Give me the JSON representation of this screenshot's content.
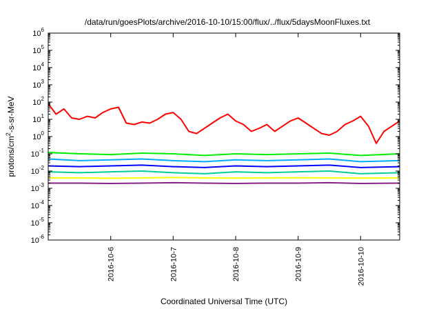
{
  "chart_data": {
    "type": "line",
    "title": "/data/run/goesPlots/archive/2016-10-10/15:00/flux/../flux/5daysMoonFluxes.txt",
    "xlabel": "Coordinated Universal Time (UTC)",
    "ylabel_parts": [
      "protons/cm",
      "2",
      "-s-sr-MeV"
    ],
    "yscale": "log",
    "ylim": [
      1e-06,
      1000000.0
    ],
    "xlim": [
      "2016-10-05T00:00",
      "2016-10-10T15:00"
    ],
    "x_ticks": [
      "2016-10-6",
      "2016-10-7",
      "2016-10-8",
      "2016-10-9",
      "2016-10-10"
    ],
    "y_ticks": [
      {
        "base": "10",
        "exp": "-6"
      },
      {
        "base": "10",
        "exp": "-5"
      },
      {
        "base": "10",
        "exp": "-4"
      },
      {
        "base": "10",
        "exp": "-3"
      },
      {
        "base": "10",
        "exp": "-2"
      },
      {
        "base": "10",
        "exp": "-1"
      },
      {
        "base": "10",
        "exp": "0"
      },
      {
        "base": "10",
        "exp": "1"
      },
      {
        "base": "10",
        "exp": "2"
      },
      {
        "base": "10",
        "exp": "3"
      },
      {
        "base": "10",
        "exp": "4"
      },
      {
        "base": "10",
        "exp": "5"
      },
      {
        "base": "10",
        "exp": "6"
      }
    ],
    "grid": false,
    "legend": "none",
    "series": [
      {
        "color": "#ff0000",
        "x": [
          "2016-10-05T00:00",
          "2016-10-05T03:00",
          "2016-10-05T06:00",
          "2016-10-05T09:00",
          "2016-10-05T12:00",
          "2016-10-05T15:00",
          "2016-10-05T18:00",
          "2016-10-05T21:00",
          "2016-10-06T00:00",
          "2016-10-06T03:00",
          "2016-10-06T06:00",
          "2016-10-06T09:00",
          "2016-10-06T12:00",
          "2016-10-06T15:00",
          "2016-10-06T18:00",
          "2016-10-06T21:00",
          "2016-10-07T00:00",
          "2016-10-07T03:00",
          "2016-10-07T06:00",
          "2016-10-07T09:00",
          "2016-10-07T12:00",
          "2016-10-07T15:00",
          "2016-10-07T18:00",
          "2016-10-07T21:00",
          "2016-10-08T00:00",
          "2016-10-08T03:00",
          "2016-10-08T06:00",
          "2016-10-08T09:00",
          "2016-10-08T12:00",
          "2016-10-08T15:00",
          "2016-10-08T18:00",
          "2016-10-08T21:00",
          "2016-10-09T00:00",
          "2016-10-09T03:00",
          "2016-10-09T06:00",
          "2016-10-09T09:00",
          "2016-10-09T12:00",
          "2016-10-09T15:00",
          "2016-10-09T18:00",
          "2016-10-09T21:00",
          "2016-10-10T00:00",
          "2016-10-10T03:00",
          "2016-10-10T06:00",
          "2016-10-10T09:00",
          "2016-10-10T12:00",
          "2016-10-10T15:00"
        ],
        "values": [
          80,
          20,
          40,
          12,
          10,
          15,
          12,
          25,
          40,
          50,
          6,
          5,
          7,
          6,
          10,
          20,
          25,
          10,
          2,
          1.5,
          3,
          6,
          12,
          20,
          8,
          5,
          2,
          3,
          5,
          2,
          4,
          8,
          12,
          6,
          3,
          1.5,
          1.2,
          2,
          5,
          8,
          15,
          4,
          0.4,
          2,
          4,
          8
        ]
      },
      {
        "color": "#00ee00",
        "x": [
          "2016-10-05T00:00",
          "2016-10-05T12:00",
          "2016-10-06T00:00",
          "2016-10-06T12:00",
          "2016-10-07T00:00",
          "2016-10-07T12:00",
          "2016-10-08T00:00",
          "2016-10-08T12:00",
          "2016-10-09T00:00",
          "2016-10-09T12:00",
          "2016-10-10T00:00",
          "2016-10-10T15:00"
        ],
        "values": [
          0.12,
          0.1,
          0.09,
          0.11,
          0.1,
          0.08,
          0.1,
          0.09,
          0.1,
          0.11,
          0.08,
          0.1
        ]
      },
      {
        "color": "#00aaff",
        "x": [
          "2016-10-05T00:00",
          "2016-10-05T12:00",
          "2016-10-06T00:00",
          "2016-10-06T12:00",
          "2016-10-07T00:00",
          "2016-10-07T12:00",
          "2016-10-08T00:00",
          "2016-10-08T12:00",
          "2016-10-09T00:00",
          "2016-10-09T12:00",
          "2016-10-10T00:00",
          "2016-10-10T15:00"
        ],
        "values": [
          0.05,
          0.04,
          0.045,
          0.05,
          0.04,
          0.035,
          0.045,
          0.04,
          0.045,
          0.05,
          0.035,
          0.04
        ]
      },
      {
        "color": "#0000ff",
        "x": [
          "2016-10-05T00:00",
          "2016-10-05T12:00",
          "2016-10-06T00:00",
          "2016-10-06T12:00",
          "2016-10-07T00:00",
          "2016-10-07T12:00",
          "2016-10-08T00:00",
          "2016-10-08T12:00",
          "2016-10-09T00:00",
          "2016-10-09T12:00",
          "2016-10-10T00:00",
          "2016-10-10T15:00"
        ],
        "values": [
          0.02,
          0.018,
          0.02,
          0.022,
          0.018,
          0.016,
          0.02,
          0.018,
          0.02,
          0.022,
          0.016,
          0.018
        ]
      },
      {
        "color": "#00cc99",
        "x": [
          "2016-10-05T00:00",
          "2016-10-05T12:00",
          "2016-10-06T00:00",
          "2016-10-06T12:00",
          "2016-10-07T00:00",
          "2016-10-07T12:00",
          "2016-10-08T00:00",
          "2016-10-08T12:00",
          "2016-10-09T00:00",
          "2016-10-09T12:00",
          "2016-10-10T00:00",
          "2016-10-10T15:00"
        ],
        "values": [
          0.009,
          0.008,
          0.009,
          0.01,
          0.008,
          0.007,
          0.009,
          0.008,
          0.009,
          0.01,
          0.007,
          0.008
        ]
      },
      {
        "color": "#ffff00",
        "x": [
          "2016-10-05T00:00",
          "2016-10-05T12:00",
          "2016-10-06T00:00",
          "2016-10-06T12:00",
          "2016-10-07T00:00",
          "2016-10-07T12:00",
          "2016-10-08T00:00",
          "2016-10-08T12:00",
          "2016-10-09T00:00",
          "2016-10-09T12:00",
          "2016-10-10T00:00",
          "2016-10-10T15:00"
        ],
        "values": [
          0.004,
          0.004,
          0.0038,
          0.004,
          0.0042,
          0.004,
          0.0039,
          0.004,
          0.0041,
          0.004,
          0.0039,
          0.004
        ]
      },
      {
        "color": "#882288",
        "x": [
          "2016-10-05T00:00",
          "2016-10-05T12:00",
          "2016-10-06T00:00",
          "2016-10-06T12:00",
          "2016-10-07T00:00",
          "2016-10-07T12:00",
          "2016-10-08T00:00",
          "2016-10-08T12:00",
          "2016-10-09T00:00",
          "2016-10-09T12:00",
          "2016-10-10T00:00",
          "2016-10-10T15:00"
        ],
        "values": [
          0.002,
          0.002,
          0.0019,
          0.002,
          0.0021,
          0.002,
          0.0019,
          0.002,
          0.002,
          0.0021,
          0.0019,
          0.002
        ]
      }
    ]
  }
}
